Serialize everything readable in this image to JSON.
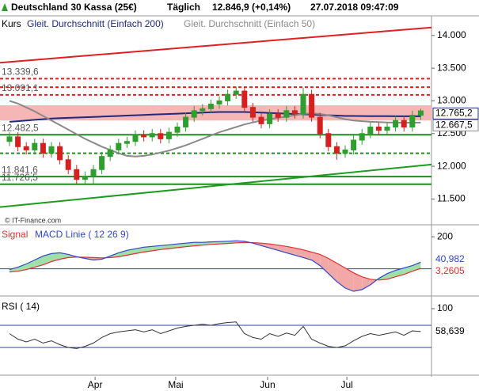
{
  "header": {
    "instrument": "Deutschland 30 Kassa (25€)",
    "interval": "Täglich",
    "quote": "12.846,9 (+0,14%)",
    "timestamp": "27.07.2018 09:47:09"
  },
  "watermark": "© IT-Finance.com",
  "chart_data": [
    {
      "type": "candlestick",
      "name": "Kurs",
      "up_color": "#2e9e2e",
      "down_color": "#d62020",
      "open": [
        12380,
        12450,
        12300,
        12250,
        12350,
        12200,
        12300,
        12100,
        11950,
        11800,
        11850,
        11950,
        12150,
        12250,
        12350,
        12380,
        12480,
        12450,
        12500,
        12420,
        12520,
        12600,
        12750,
        12850,
        12880,
        12950,
        13000,
        13100,
        13150,
        12900,
        12750,
        12650,
        12800,
        12750,
        12850,
        12800,
        13100,
        12750,
        12500,
        12300,
        12200,
        12250,
        12400,
        12500,
        12600,
        12550,
        12600,
        12700,
        12600,
        12780
      ],
      "high": [
        12520,
        12520,
        12370,
        12420,
        12420,
        12370,
        12370,
        12170,
        12020,
        11920,
        12020,
        12220,
        12320,
        12420,
        12450,
        12550,
        12550,
        12570,
        12570,
        12590,
        12670,
        12820,
        12920,
        12950,
        13020,
        13070,
        13170,
        13220,
        13220,
        12970,
        12820,
        12870,
        12870,
        12920,
        12920,
        13200,
        13170,
        12820,
        12570,
        12370,
        12320,
        12470,
        12570,
        12670,
        12670,
        12670,
        12770,
        12770,
        12850,
        12880
      ],
      "low": [
        12310,
        12230,
        12180,
        12180,
        12130,
        12130,
        12030,
        11880,
        11730,
        11730,
        11720,
        11880,
        12080,
        12180,
        12280,
        12310,
        12380,
        12380,
        12350,
        12350,
        12450,
        12530,
        12680,
        12780,
        12810,
        12880,
        12930,
        13030,
        12830,
        12680,
        12580,
        12580,
        12680,
        12680,
        12730,
        12730,
        12680,
        12430,
        12230,
        12100,
        12130,
        12180,
        12330,
        12430,
        12480,
        12480,
        12530,
        12530,
        12530,
        12710
      ],
      "close": [
        12450,
        12300,
        12250,
        12350,
        12200,
        12300,
        12100,
        11950,
        11800,
        11850,
        11950,
        12150,
        12250,
        12350,
        12380,
        12480,
        12450,
        12500,
        12420,
        12520,
        12600,
        12750,
        12850,
        12880,
        12950,
        13000,
        13100,
        13150,
        12900,
        12750,
        12650,
        12800,
        12750,
        12850,
        12800,
        13100,
        12750,
        12500,
        12300,
        12200,
        12250,
        12400,
        12500,
        12600,
        12550,
        12600,
        12700,
        12600,
        12780,
        12846.9
      ],
      "series": [
        {
          "name": "Gleit. Durchschnitt (Einfach 200)",
          "color": "#1f2a7a",
          "end_label": "12.765,2",
          "values": [
            12680,
            12690,
            12700,
            12710,
            12720,
            12730,
            12735,
            12740,
            12745,
            12750,
            12755,
            12760,
            12765,
            12770,
            12775,
            12780,
            12785,
            12790,
            12795,
            12800,
            12805,
            12810,
            12815,
            12820,
            12825,
            12830,
            12830,
            12830,
            12830,
            12825,
            12820,
            12815,
            12810,
            12805,
            12800,
            12795,
            12790,
            12785,
            12780,
            12775,
            12770,
            12770,
            12768,
            12767,
            12766,
            12766,
            12765,
            12765,
            12765,
            12765.2
          ]
        },
        {
          "name": "Gleit. Durchschnitt (Einfach 50)",
          "color": "#8a8a8a",
          "end_label": "12.667,5",
          "values": [
            13000,
            12960,
            12900,
            12840,
            12770,
            12700,
            12630,
            12560,
            12490,
            12420,
            12360,
            12300,
            12250,
            12200,
            12160,
            12150,
            12160,
            12180,
            12210,
            12240,
            12280,
            12320,
            12370,
            12420,
            12470,
            12520,
            12560,
            12600,
            12640,
            12670,
            12700,
            12720,
            12740,
            12760,
            12780,
            12800,
            12810,
            12800,
            12780,
            12750,
            12720,
            12700,
            12690,
            12680,
            12675,
            12670,
            12668,
            12667,
            12667,
            12667.5
          ]
        }
      ],
      "zone": {
        "range": [
          12700,
          12933
        ],
        "color": "#f6b6b6"
      },
      "levels": [
        {
          "value": 13339.6,
          "label": "13.339,6",
          "color": "#e02020",
          "dashed": true
        },
        {
          "value": 13210,
          "color": "#e02020",
          "dashed": true
        },
        {
          "value": 13091.1,
          "label": "13.091,1",
          "color": "#e02020",
          "dashed": true
        },
        {
          "value": 12482.5,
          "label": "12.482,5",
          "color": "#1e8c1e",
          "dashed": false
        },
        {
          "value": 12200,
          "color": "#1e8c1e",
          "dashed": true
        },
        {
          "value": 11841.6,
          "label": "11.841,6",
          "color": "#1e8c1e",
          "dashed": false
        },
        {
          "value": 11726.5,
          "label": "11.726,5",
          "color": "#1e8c1e",
          "dashed": false
        }
      ],
      "trendlines": [
        {
          "from": 13583,
          "to": 14122,
          "color": "#e02020"
        },
        {
          "from": 11377,
          "to": 12027,
          "color": "#1e9c1e"
        }
      ],
      "ylim": [
        11130,
        14300
      ],
      "yticks": [
        {
          "value": 11500,
          "label": "11.500"
        },
        {
          "value": 12000,
          "label": "12.000"
        },
        {
          "value": 12500,
          "label": "12.500"
        },
        {
          "value": 13000,
          "label": "13.000"
        },
        {
          "value": 13500,
          "label": "13.500"
        },
        {
          "value": 14000,
          "label": "14.000"
        }
      ],
      "xticks": [
        {
          "value": 10.2,
          "label": "Apr"
        },
        {
          "value": 19.8,
          "label": "Mai"
        },
        {
          "value": 30.75,
          "label": "Jun"
        },
        {
          "value": 40.2,
          "label": "Jul"
        }
      ]
    },
    {
      "type": "macd",
      "ylim": [
        -160,
        255
      ],
      "yticks": [
        200
      ],
      "levels": [
        0
      ],
      "series": [
        {
          "name": "Signal",
          "color": "#e03030",
          "end_label": "3,2605",
          "values": [
            -20,
            -15,
            -5,
            10,
            25,
            45,
            60,
            70,
            73,
            72,
            70,
            68,
            70,
            75,
            85,
            95,
            105,
            112,
            120,
            126,
            132,
            138,
            143,
            148,
            152,
            155,
            158,
            162,
            164,
            163,
            160,
            155,
            148,
            140,
            130,
            118,
            105,
            90,
            65,
            35,
            5,
            -25,
            -50,
            -65,
            -70,
            -65,
            -50,
            -35,
            -15,
            3.2605
          ]
        },
        {
          "name": "MACD Linie ( 12 26 9)",
          "color": "#3046c8",
          "end_label": "40,982",
          "values": [
            -5,
            10,
            30,
            55,
            80,
            95,
            100,
            90,
            75,
            65,
            55,
            60,
            80,
            100,
            115,
            125,
            135,
            140,
            145,
            150,
            155,
            160,
            165,
            165,
            168,
            170,
            172,
            175,
            172,
            160,
            145,
            130,
            115,
            100,
            85,
            70,
            55,
            20,
            -30,
            -80,
            -120,
            -140,
            -130,
            -100,
            -60,
            -30,
            -10,
            5,
            20,
            40.982
          ]
        }
      ],
      "up_fill": "#9fe0a8",
      "down_fill": "#f3a8a8"
    },
    {
      "type": "rsi",
      "title": "RSI ( 14)",
      "ylim": [
        -17,
        117
      ],
      "yticks": [
        100
      ],
      "levels": [
        70,
        30
      ],
      "series": [
        {
          "name": "RSI",
          "color": "#333333",
          "end_label": "58,639",
          "values": [
            55,
            45,
            40,
            45,
            38,
            42,
            35,
            30,
            28,
            32,
            38,
            48,
            55,
            58,
            60,
            62,
            58,
            62,
            55,
            60,
            65,
            68,
            70,
            72,
            70,
            73,
            75,
            76,
            55,
            48,
            45,
            55,
            50,
            56,
            52,
            68,
            45,
            38,
            32,
            30,
            33,
            42,
            50,
            55,
            52,
            55,
            58,
            52,
            60,
            58.639
          ]
        }
      ]
    }
  ]
}
